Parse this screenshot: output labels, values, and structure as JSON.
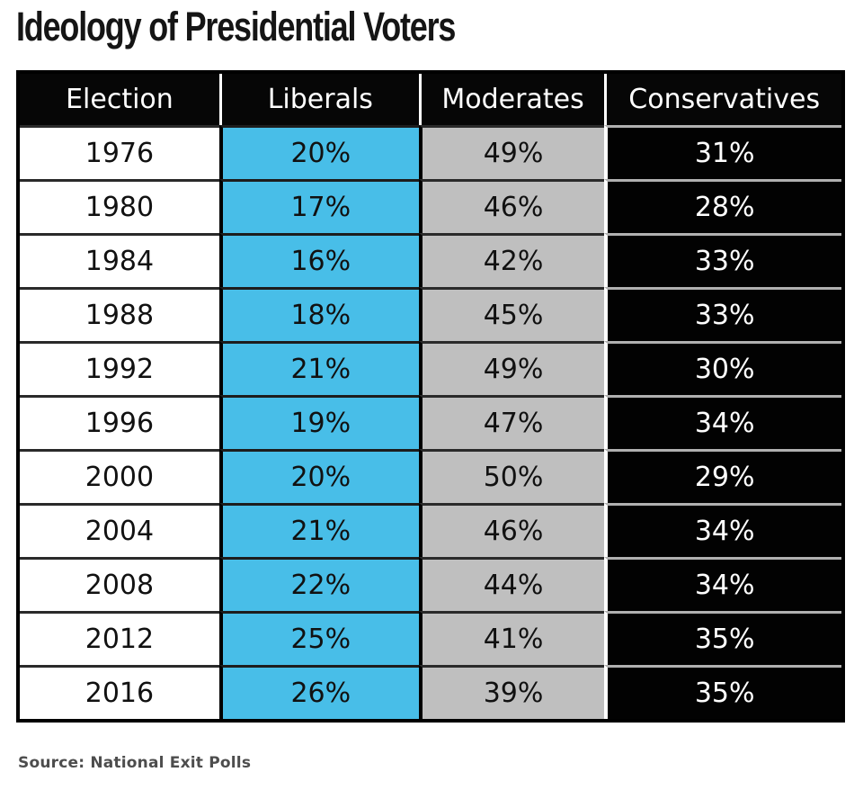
{
  "title": "Ideology of Presidential Voters",
  "source": "Source: National Exit Polls",
  "colors": {
    "liberals_cell": "#48BEE8",
    "moderates_cell": "#BFBFBF",
    "conservatives_cell": "#020202",
    "header_bg": "#060606",
    "header_text": "#FFFFFF"
  },
  "table": {
    "columns": [
      "Election",
      "Liberals",
      "Moderates",
      "Conservatives"
    ],
    "rows": [
      {
        "election": "1976",
        "liberals": "20%",
        "moderates": "49%",
        "conservatives": "31%"
      },
      {
        "election": "1980",
        "liberals": "17%",
        "moderates": "46%",
        "conservatives": "28%"
      },
      {
        "election": "1984",
        "liberals": "16%",
        "moderates": "42%",
        "conservatives": "33%"
      },
      {
        "election": "1988",
        "liberals": "18%",
        "moderates": "45%",
        "conservatives": "33%"
      },
      {
        "election": "1992",
        "liberals": "21%",
        "moderates": "49%",
        "conservatives": "30%"
      },
      {
        "election": "1996",
        "liberals": "19%",
        "moderates": "47%",
        "conservatives": "34%"
      },
      {
        "election": "2000",
        "liberals": "20%",
        "moderates": "50%",
        "conservatives": "29%"
      },
      {
        "election": "2004",
        "liberals": "21%",
        "moderates": "46%",
        "conservatives": "34%"
      },
      {
        "election": "2008",
        "liberals": "22%",
        "moderates": "44%",
        "conservatives": "34%"
      },
      {
        "election": "2012",
        "liberals": "25%",
        "moderates": "41%",
        "conservatives": "35%"
      },
      {
        "election": "2016",
        "liberals": "26%",
        "moderates": "39%",
        "conservatives": "35%"
      }
    ]
  },
  "chart_data": {
    "type": "table",
    "title": "Ideology of Presidential Voters",
    "columns": [
      "Election",
      "Liberals",
      "Moderates",
      "Conservatives"
    ],
    "categories": [
      "1976",
      "1980",
      "1984",
      "1988",
      "1992",
      "1996",
      "2000",
      "2004",
      "2008",
      "2012",
      "2016"
    ],
    "series": [
      {
        "name": "Liberals",
        "values": [
          20,
          17,
          16,
          18,
          21,
          19,
          20,
          21,
          22,
          25,
          26
        ]
      },
      {
        "name": "Moderates",
        "values": [
          49,
          46,
          42,
          45,
          49,
          47,
          50,
          46,
          44,
          41,
          39
        ]
      },
      {
        "name": "Conservatives",
        "values": [
          31,
          28,
          33,
          33,
          30,
          34,
          29,
          34,
          34,
          35,
          35
        ]
      }
    ],
    "unit": "%",
    "source": "Source: National Exit Polls"
  }
}
